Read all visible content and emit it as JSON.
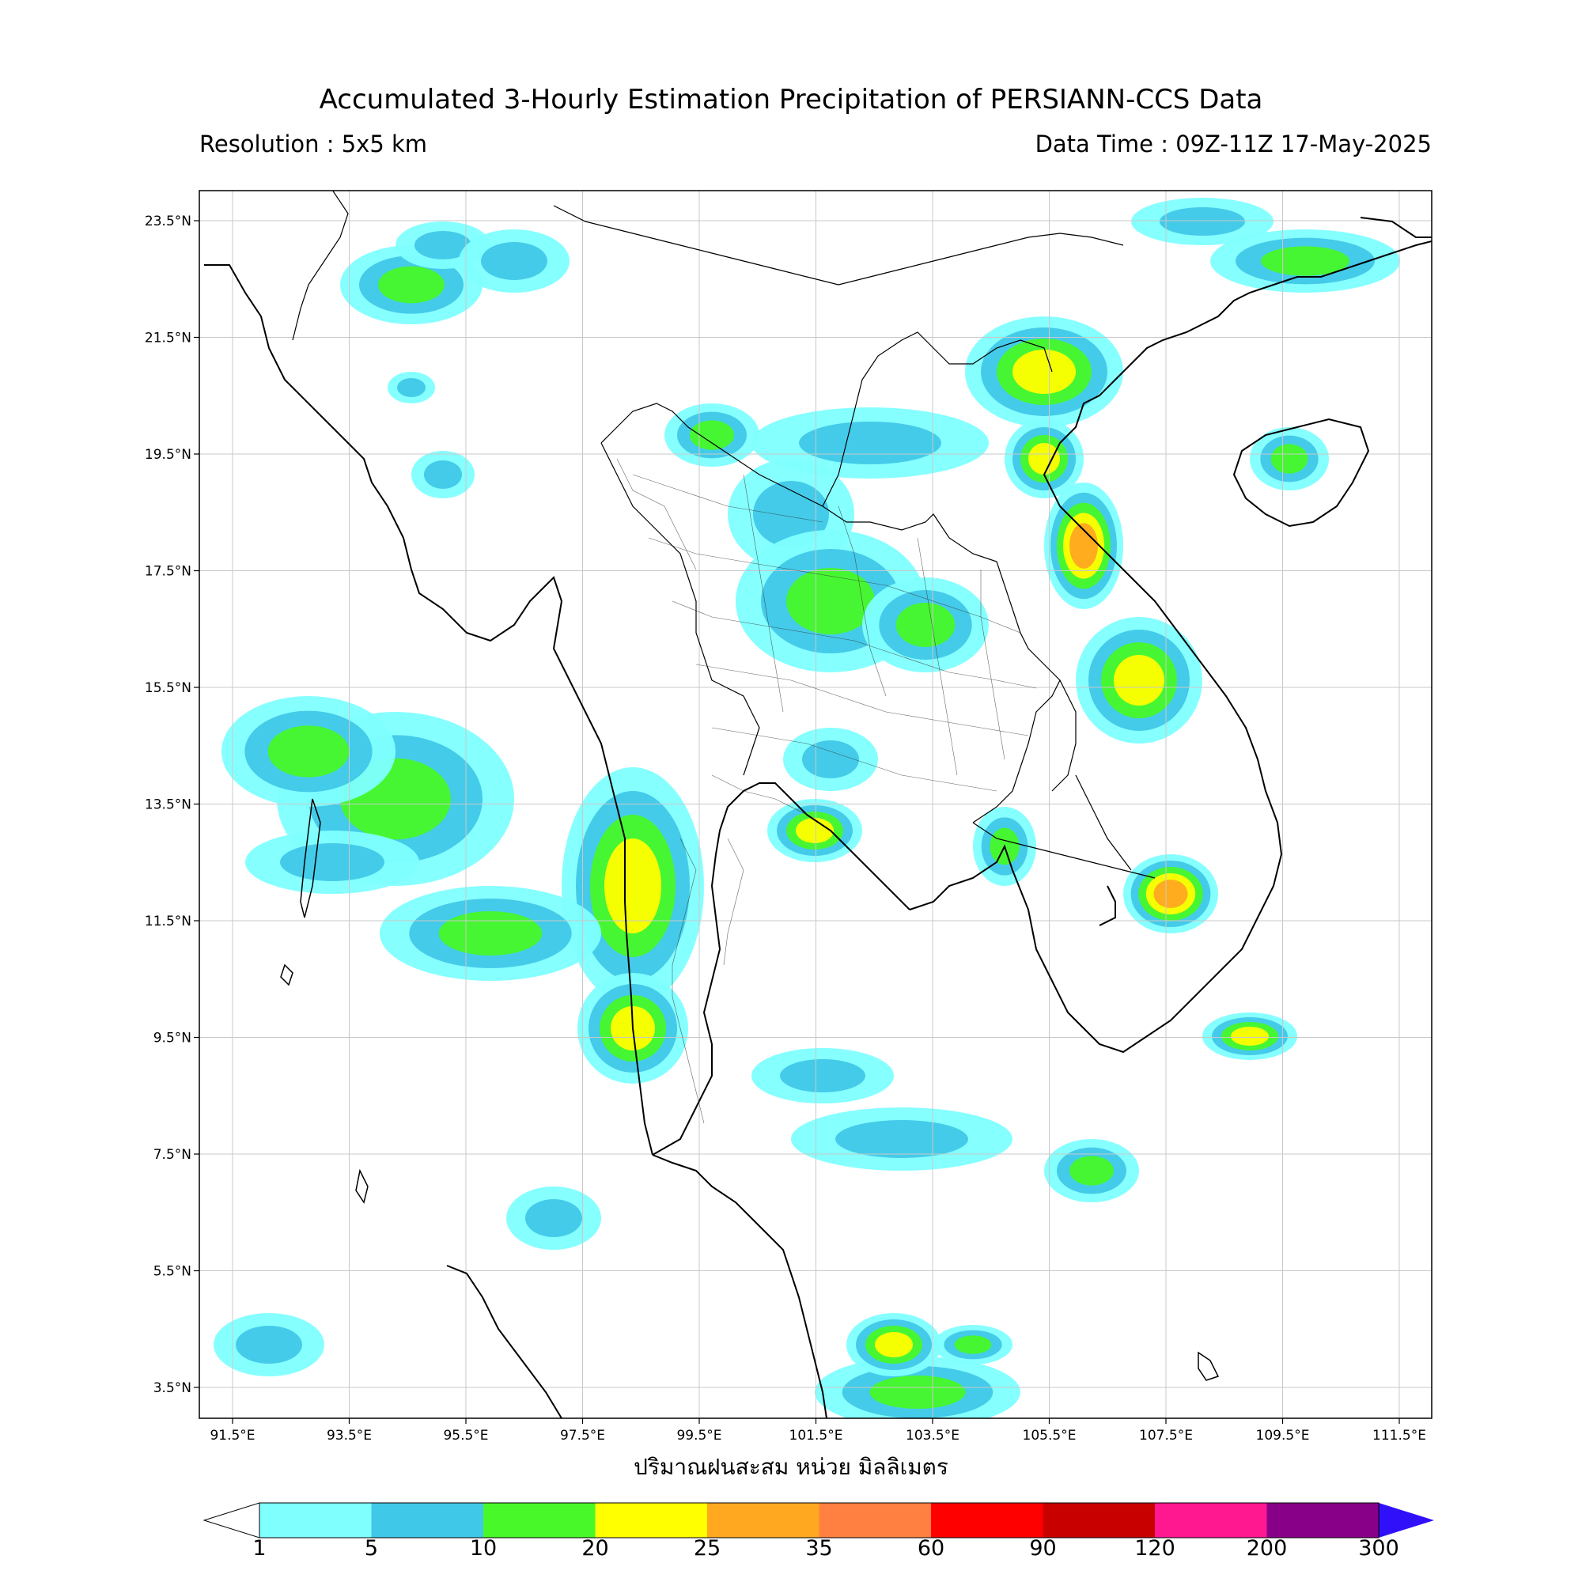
{
  "title": "Accumulated 3-Hourly Estimation Precipitation of PERSIANN-CCS Data",
  "resolution": "Resolution : 5x5 km",
  "data_time": "Data Time : 09Z-11Z 17-May-2025",
  "xlabel": "ปริมาณฝนสะสม หน่วย มิลลิเมตร",
  "lon_ticks": [
    "91.5°E",
    "93.5°E",
    "95.5°E",
    "97.5°E",
    "99.5°E",
    "101.5°E",
    "103.5°E",
    "105.5°E",
    "107.5°E",
    "109.5°E",
    "111.5°E"
  ],
  "lat_ticks": [
    "23.5°N",
    "21.5°N",
    "19.5°N",
    "17.5°N",
    "15.5°N",
    "13.5°N",
    "11.5°N",
    "9.5°N",
    "7.5°N",
    "5.5°N",
    "3.5°N"
  ],
  "colorbar": {
    "labels": [
      "1",
      "5",
      "10",
      "20",
      "25",
      "35",
      "60",
      "90",
      "120",
      "200",
      "300"
    ],
    "colors": [
      "#80ffff",
      "#40c8e8",
      "#48f828",
      "#ffff00",
      "#ffa820",
      "#ff8040",
      "#ff0000",
      "#c80000",
      "#ff1890",
      "#880088"
    ],
    "under_color": "#ffffff",
    "over_color": "#3010f8"
  }
}
